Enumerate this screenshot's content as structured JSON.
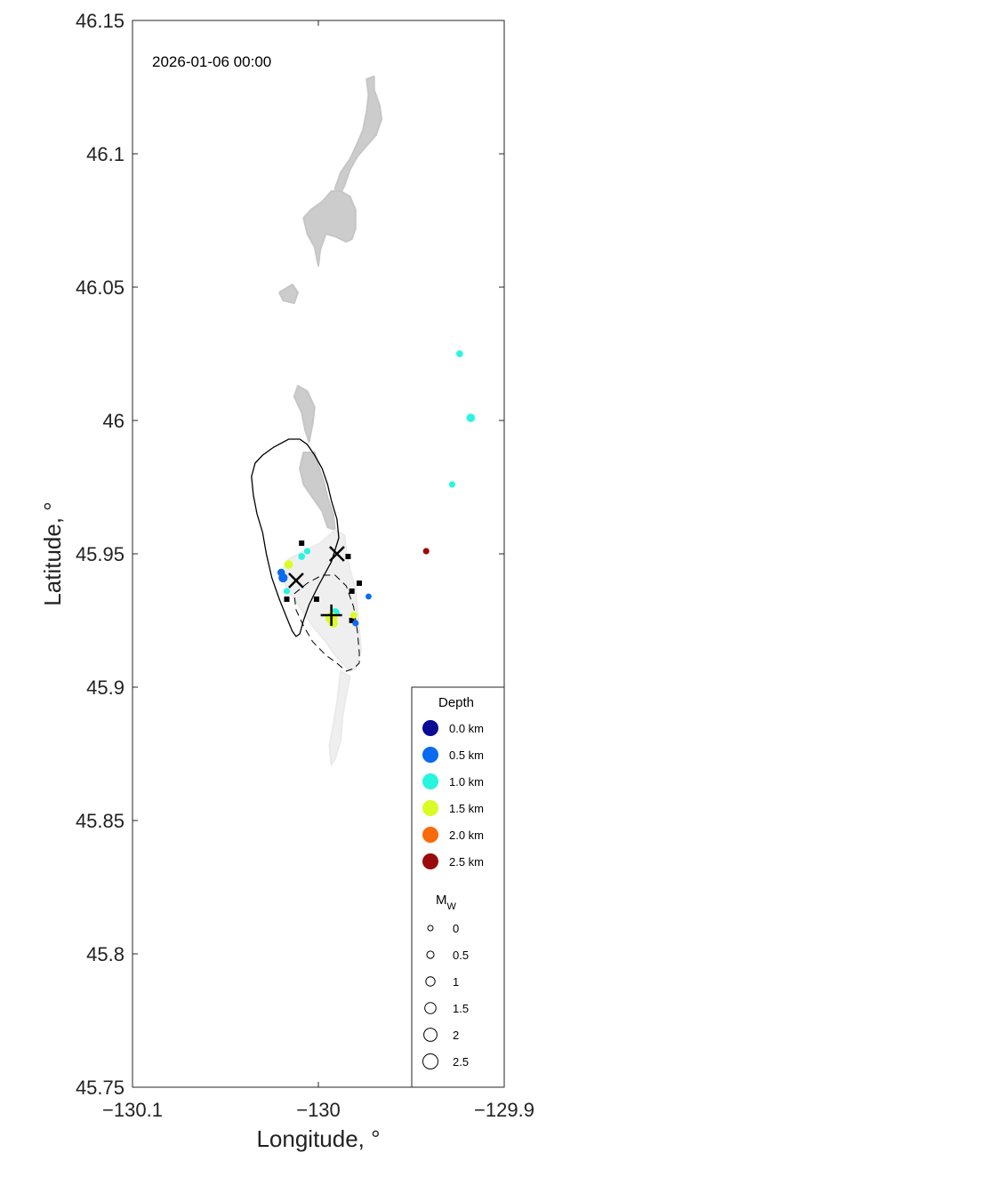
{
  "timestamp": "2026-01-06 00:00",
  "chart_data": {
    "type": "scatter",
    "xlabel": "Longitude, °",
    "ylabel": "Latitude, °",
    "xlim": [
      -130.1,
      -129.9
    ],
    "ylim": [
      45.75,
      46.15
    ],
    "xticks": [
      -130.1,
      -130.0,
      -129.9
    ],
    "xtick_labels": [
      "−130.1",
      "−130",
      "−129.9"
    ],
    "yticks": [
      45.75,
      45.8,
      45.85,
      45.9,
      45.95,
      46.0,
      46.05,
      46.1,
      46.15
    ],
    "ytick_labels": [
      "45.75",
      "45.8",
      "45.85",
      "45.9",
      "45.95",
      "46",
      "46.05",
      "46.1",
      "46.15"
    ],
    "grid": false,
    "legend_placement": "bottom-right",
    "depth_legend": {
      "title": "Depth",
      "items": [
        {
          "label": "0.0 km",
          "depth": 0.0,
          "color": "#0a0a96"
        },
        {
          "label": "0.5 km",
          "depth": 0.5,
          "color": "#0a6af0"
        },
        {
          "label": "1.0 km",
          "depth": 1.0,
          "color": "#27f5e0"
        },
        {
          "label": "1.5 km",
          "depth": 1.5,
          "color": "#dcfb25"
        },
        {
          "label": "2.0 km",
          "depth": 2.0,
          "color": "#fa6a08"
        },
        {
          "label": "2.5 km",
          "depth": 2.5,
          "color": "#9a0a0a"
        }
      ]
    },
    "magnitude_legend": {
      "title_main": "M",
      "title_sub": "W",
      "items": [
        {
          "label": "0",
          "mw": 0.0
        },
        {
          "label": "0.5",
          "mw": 0.5
        },
        {
          "label": "1",
          "mw": 1.0
        },
        {
          "label": "1.5",
          "mw": 1.5
        },
        {
          "label": "2",
          "mw": 2.0
        },
        {
          "label": "2.5",
          "mw": 2.5
        }
      ]
    },
    "earthquakes": [
      {
        "lon": -129.924,
        "lat": 46.025,
        "depth": 1.0,
        "mw": 0.6
      },
      {
        "lon": -129.918,
        "lat": 46.001,
        "depth": 1.0,
        "mw": 1.0
      },
      {
        "lon": -129.928,
        "lat": 45.976,
        "depth": 1.0,
        "mw": 0.5
      },
      {
        "lon": -129.942,
        "lat": 45.951,
        "depth": 2.5,
        "mw": 0.5
      },
      {
        "lon": -130.006,
        "lat": 45.951,
        "depth": 1.0,
        "mw": 0.5
      },
      {
        "lon": -130.009,
        "lat": 45.949,
        "depth": 1.0,
        "mw": 0.6
      },
      {
        "lon": -130.016,
        "lat": 45.946,
        "depth": 1.5,
        "mw": 1.1
      },
      {
        "lon": -130.02,
        "lat": 45.943,
        "depth": 0.5,
        "mw": 0.8
      },
      {
        "lon": -130.019,
        "lat": 45.941,
        "depth": 0.5,
        "mw": 1.2
      },
      {
        "lon": -130.017,
        "lat": 45.936,
        "depth": 1.0,
        "mw": 0.5
      },
      {
        "lon": -129.973,
        "lat": 45.934,
        "depth": 0.5,
        "mw": 0.4
      },
      {
        "lon": -129.981,
        "lat": 45.927,
        "depth": 1.5,
        "mw": 0.6
      },
      {
        "lon": -129.991,
        "lat": 45.928,
        "depth": 1.0,
        "mw": 1.1
      },
      {
        "lon": -129.993,
        "lat": 45.926,
        "depth": 1.5,
        "mw": 1.9
      },
      {
        "lon": -129.992,
        "lat": 45.924,
        "depth": 1.5,
        "mw": 1.2
      },
      {
        "lon": -129.98,
        "lat": 45.924,
        "depth": 0.5,
        "mw": 0.5
      }
    ],
    "stations": [
      {
        "lon": -130.009,
        "lat": 45.954
      },
      {
        "lon": -129.984,
        "lat": 45.949
      },
      {
        "lon": -129.978,
        "lat": 45.939
      },
      {
        "lon": -129.982,
        "lat": 45.936
      },
      {
        "lon": -130.017,
        "lat": 45.933
      },
      {
        "lon": -130.001,
        "lat": 45.933
      },
      {
        "lon": -129.982,
        "lat": 45.925
      }
    ],
    "x_markers": [
      {
        "lon": -129.99,
        "lat": 45.95
      },
      {
        "lon": -130.012,
        "lat": 45.94
      }
    ],
    "plus_markers": [
      {
        "lon": -129.993,
        "lat": 45.927
      }
    ],
    "caldera_outline": [
      [
        -130.034,
        45.984
      ],
      [
        -130.03,
        45.987
      ],
      [
        -130.024,
        45.99
      ],
      [
        -130.016,
        45.993
      ],
      [
        -130.01,
        45.993
      ],
      [
        -130.006,
        45.991
      ],
      [
        -130.002,
        45.987
      ],
      [
        -129.998,
        45.982
      ],
      [
        -129.995,
        45.976
      ],
      [
        -129.993,
        45.97
      ],
      [
        -129.99,
        45.963
      ],
      [
        -129.989,
        45.956
      ],
      [
        -129.993,
        45.947
      ],
      [
        -130.0,
        45.938
      ],
      [
        -130.005,
        45.931
      ],
      [
        -130.008,
        45.925
      ],
      [
        -130.01,
        45.92
      ],
      [
        -130.012,
        45.919
      ],
      [
        -130.014,
        45.921
      ],
      [
        -130.017,
        45.926
      ],
      [
        -130.021,
        45.933
      ],
      [
        -130.025,
        45.941
      ],
      [
        -130.028,
        45.95
      ],
      [
        -130.03,
        45.958
      ],
      [
        -130.033,
        45.965
      ],
      [
        -130.035,
        45.972
      ],
      [
        -130.036,
        45.979
      ],
      [
        -130.034,
        45.984
      ]
    ],
    "eruption_outline": [
      [
        -130.013,
        45.935
      ],
      [
        -130.006,
        45.939
      ],
      [
        -129.998,
        45.942
      ],
      [
        -129.991,
        45.942
      ],
      [
        -129.985,
        45.938
      ],
      [
        -129.981,
        45.93
      ],
      [
        -129.979,
        45.921
      ],
      [
        -129.978,
        45.913
      ],
      [
        -129.978,
        45.909
      ],
      [
        -129.981,
        45.907
      ],
      [
        -129.985,
        45.906
      ],
      [
        -129.99,
        45.909
      ],
      [
        -129.996,
        45.912
      ],
      [
        -130.003,
        45.917
      ],
      [
        -130.008,
        45.923
      ],
      [
        -130.012,
        45.929
      ],
      [
        -130.013,
        45.935
      ]
    ],
    "lava_flows_dark": [
      [
        [
          -129.974,
          46.128
        ],
        [
          -129.97,
          46.129
        ],
        [
          -129.97,
          46.124
        ],
        [
          -129.967,
          46.118
        ],
        [
          -129.966,
          46.113
        ],
        [
          -129.969,
          46.107
        ],
        [
          -129.974,
          46.103
        ],
        [
          -129.979,
          46.099
        ],
        [
          -129.983,
          46.094
        ],
        [
          -129.986,
          46.088
        ],
        [
          -129.989,
          46.084
        ],
        [
          -129.991,
          46.087
        ],
        [
          -129.988,
          46.093
        ],
        [
          -129.983,
          46.098
        ],
        [
          -129.979,
          46.104
        ],
        [
          -129.976,
          46.109
        ],
        [
          -129.974,
          46.116
        ],
        [
          -129.973,
          46.122
        ],
        [
          -129.974,
          46.128
        ]
      ],
      [
        [
          -129.988,
          46.086
        ],
        [
          -129.983,
          46.084
        ],
        [
          -129.98,
          46.079
        ],
        [
          -129.98,
          46.072
        ],
        [
          -129.982,
          46.068
        ],
        [
          -129.985,
          46.067
        ],
        [
          -129.991,
          46.069
        ],
        [
          -129.996,
          46.07
        ],
        [
          -129.999,
          46.064
        ],
        [
          -130.0,
          46.058
        ],
        [
          -130.002,
          46.065
        ],
        [
          -130.006,
          46.07
        ],
        [
          -130.008,
          46.076
        ],
        [
          -130.004,
          46.079
        ],
        [
          -129.998,
          46.082
        ],
        [
          -129.993,
          46.086
        ],
        [
          -129.988,
          46.086
        ]
      ],
      [
        [
          -130.021,
          46.048
        ],
        [
          -130.014,
          46.051
        ],
        [
          -130.011,
          46.048
        ],
        [
          -130.013,
          46.044
        ],
        [
          -130.019,
          46.045
        ],
        [
          -130.021,
          46.048
        ]
      ],
      [
        [
          -130.011,
          46.013
        ],
        [
          -130.006,
          46.011
        ],
        [
          -130.002,
          46.005
        ],
        [
          -130.003,
          45.999
        ],
        [
          -130.005,
          45.992
        ],
        [
          -130.007,
          45.996
        ],
        [
          -130.009,
          46.003
        ],
        [
          -130.013,
          46.009
        ],
        [
          -130.011,
          46.013
        ]
      ],
      [
        [
          -130.008,
          45.988
        ],
        [
          -130.002,
          45.988
        ],
        [
          -130.0,
          45.983
        ],
        [
          -129.997,
          45.977
        ],
        [
          -129.995,
          45.971
        ],
        [
          -129.992,
          45.965
        ],
        [
          -129.991,
          45.959
        ],
        [
          -129.995,
          45.96
        ],
        [
          -129.998,
          45.966
        ],
        [
          -130.003,
          45.971
        ],
        [
          -130.008,
          45.976
        ],
        [
          -130.01,
          45.982
        ],
        [
          -130.008,
          45.988
        ]
      ]
    ],
    "lava_flows_light": [
      [
        [
          -129.991,
          45.959
        ],
        [
          -129.986,
          45.957
        ],
        [
          -129.985,
          45.951
        ],
        [
          -129.983,
          45.944
        ],
        [
          -129.98,
          45.937
        ],
        [
          -129.979,
          45.929
        ],
        [
          -129.978,
          45.921
        ],
        [
          -129.977,
          45.914
        ],
        [
          -129.98,
          45.907
        ],
        [
          -129.983,
          45.906
        ],
        [
          -129.987,
          45.909
        ],
        [
          -129.991,
          45.912
        ],
        [
          -129.996,
          45.917
        ],
        [
          -130.002,
          45.922
        ],
        [
          -130.007,
          45.927
        ],
        [
          -130.012,
          45.932
        ],
        [
          -130.017,
          45.937
        ],
        [
          -130.02,
          45.943
        ],
        [
          -130.016,
          45.948
        ],
        [
          -130.008,
          45.951
        ],
        [
          -129.999,
          45.954
        ],
        [
          -129.991,
          45.959
        ]
      ],
      [
        [
          -129.988,
          45.906
        ],
        [
          -129.983,
          45.904
        ],
        [
          -129.985,
          45.897
        ],
        [
          -129.987,
          45.889
        ],
        [
          -129.988,
          45.88
        ],
        [
          -129.991,
          45.873
        ],
        [
          -129.993,
          45.871
        ],
        [
          -129.994,
          45.878
        ],
        [
          -129.992,
          45.886
        ],
        [
          -129.99,
          45.894
        ],
        [
          -129.988,
          45.906
        ]
      ]
    ]
  }
}
